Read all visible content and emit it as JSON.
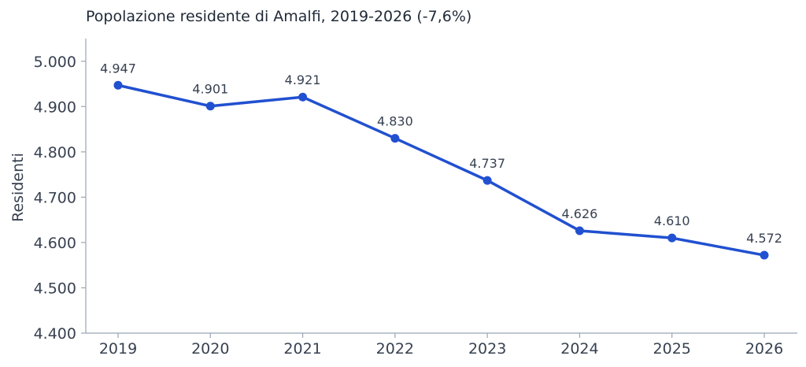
{
  "chart_data": {
    "type": "line",
    "title": "Popolazione residente di Amalfi, 2019-2026 (-7,6%)",
    "xlabel": "",
    "ylabel": "Residenti",
    "x": [
      "2019",
      "2020",
      "2021",
      "2022",
      "2023",
      "2024",
      "2025",
      "2026"
    ],
    "series": [
      {
        "values": [
          4947,
          4901,
          4921,
          4830,
          4737,
          4626,
          4610,
          4572
        ],
        "data_labels": [
          "4.947",
          "4.901",
          "4.921",
          "4.830",
          "4.737",
          "4.626",
          "4.610",
          "4.572"
        ],
        "color": "#2150d0"
      }
    ],
    "ylim": [
      4400,
      5050
    ],
    "yticks": [
      4400,
      4500,
      4600,
      4700,
      4800,
      4900,
      5000
    ],
    "ytick_labels": [
      "4.400",
      "4.500",
      "4.600",
      "4.700",
      "4.800",
      "4.900",
      "5.000"
    ],
    "grid": false,
    "legend": "none"
  }
}
